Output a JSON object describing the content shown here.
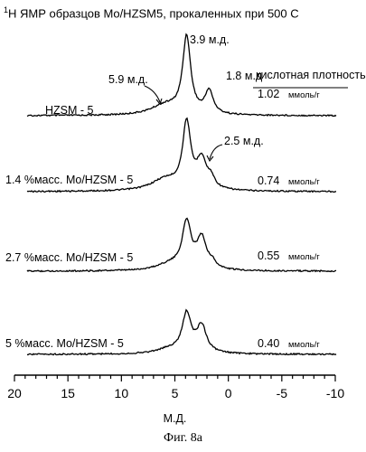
{
  "figure": {
    "title_sup": "1",
    "title_main": "Н ЯМР образцов Mo/HZSM5, прокаленных при 500 С",
    "caption": "Фиг. 8a"
  },
  "chart_data": {
    "type": "line",
    "title": "¹Н ЯМР образцов Mo/HZSM5, прокаленных при 500 С",
    "xlabel": "М.Д.",
    "ylabel": "",
    "xlim": [
      20,
      -10
    ],
    "x_reversed": true,
    "x_ticks": [
      20,
      15,
      10,
      5,
      0,
      -5,
      -10
    ],
    "x_tick_labels": [
      "20",
      "15",
      "10",
      "5",
      "0",
      "-5",
      "-10"
    ],
    "density_header": "кислотная плотность",
    "series": [
      {
        "name": "HZSM - 5",
        "density_value": "1.02",
        "density_unit": "ммоль/г",
        "peaks": [
          {
            "x": 5.9,
            "h": 0.13,
            "w": 1.6
          },
          {
            "x": 3.9,
            "h": 1.0,
            "w": 0.45
          },
          {
            "x": 1.8,
            "h": 0.3,
            "w": 0.45
          }
        ]
      },
      {
        "name": "1.4 %масс. Mo/HZSM - 5",
        "density_value": "0.74",
        "density_unit": "ммоль/г",
        "peaks": [
          {
            "x": 5.9,
            "h": 0.15,
            "w": 1.6
          },
          {
            "x": 3.9,
            "h": 0.85,
            "w": 0.45
          },
          {
            "x": 2.5,
            "h": 0.38,
            "w": 0.55
          },
          {
            "x": 1.6,
            "h": 0.12,
            "w": 0.4
          }
        ]
      },
      {
        "name": "2.7 %масс. Mo/HZSM - 5",
        "density_value": "0.55",
        "density_unit": "ммоль/г",
        "peaks": [
          {
            "x": 5.5,
            "h": 0.08,
            "w": 1.5
          },
          {
            "x": 3.9,
            "h": 0.6,
            "w": 0.5
          },
          {
            "x": 2.5,
            "h": 0.4,
            "w": 0.55
          },
          {
            "x": 1.5,
            "h": 0.07,
            "w": 0.4
          }
        ]
      },
      {
        "name": "5 %масс. Mo/HZSM - 5",
        "density_value": "0.40",
        "density_unit": "ммоль/г",
        "peaks": [
          {
            "x": 5.5,
            "h": 0.06,
            "w": 1.5
          },
          {
            "x": 3.9,
            "h": 0.5,
            "w": 0.5
          },
          {
            "x": 2.5,
            "h": 0.35,
            "w": 0.55
          }
        ]
      }
    ],
    "annotations": [
      {
        "text": "3.9 м.д.",
        "series": 0,
        "x": 3.9
      },
      {
        "text": "5.9 м.д.",
        "series": 0,
        "x": 5.9
      },
      {
        "text": "1.8 м.д",
        "series": 0,
        "x": 1.8
      },
      {
        "text": "2.5 м.д.",
        "series": 1,
        "x": 2.5
      }
    ]
  }
}
